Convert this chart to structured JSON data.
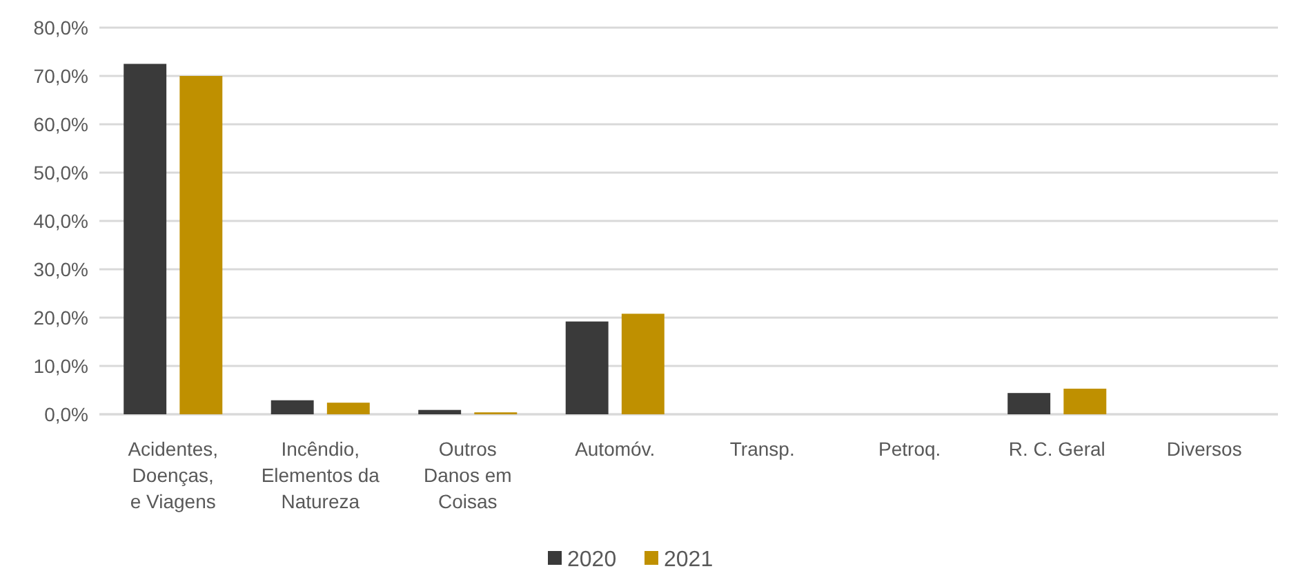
{
  "chart_data": {
    "type": "bar",
    "categories": [
      "Acidentes,\nDoenças,\ne Viagens",
      "Incêndio,\nElementos da\nNatureza",
      "Outros\nDanos em\nCoisas",
      "Automóv.",
      "Transp.",
      "Petroq.",
      "R. C. Geral",
      "Diversos"
    ],
    "series": [
      {
        "name": "2020",
        "color": "#3a3a3a",
        "values": [
          72.5,
          2.9,
          0.9,
          19.2,
          0,
          0,
          4.4,
          0
        ]
      },
      {
        "name": "2021",
        "color": "#bf9000",
        "values": [
          70.0,
          2.4,
          0.4,
          20.8,
          0,
          0,
          5.3,
          0
        ]
      }
    ],
    "ylim": [
      0,
      80
    ],
    "yticks": [
      {
        "value": 0,
        "label": "0,0%"
      },
      {
        "value": 10,
        "label": "10,0%"
      },
      {
        "value": 20,
        "label": "20,0%"
      },
      {
        "value": 30,
        "label": "30,0%"
      },
      {
        "value": 40,
        "label": "40,0%"
      },
      {
        "value": 50,
        "label": "50,0%"
      },
      {
        "value": 60,
        "label": "60,0%"
      },
      {
        "value": 70,
        "label": "70,0%"
      },
      {
        "value": 80,
        "label": "80,0%"
      }
    ],
    "grid": "y",
    "legend": "bottom"
  }
}
